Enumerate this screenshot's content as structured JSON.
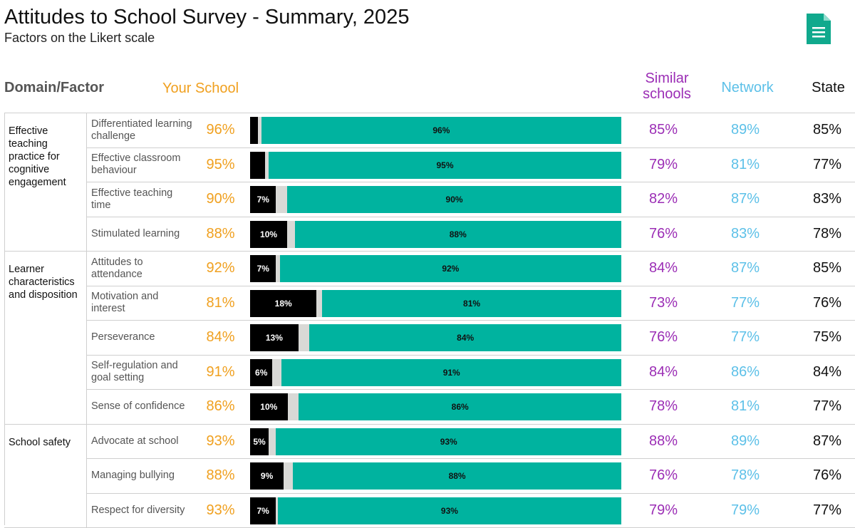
{
  "header": {
    "title": "Attitudes to School Survey - Summary, 2025",
    "subtitle": "Factors on the Likert scale"
  },
  "columns": {
    "domain": "Domain/Factor",
    "school": "Your School",
    "similar_line1": "Similar",
    "similar_line2": "schools",
    "network": "Network",
    "state": "State"
  },
  "colors": {
    "your_school": "#f0a01f",
    "similar": "#9b2db5",
    "network": "#5cc0e8",
    "negative": "#000000",
    "neutral": "#d9d9d6",
    "positive": "#00b39f"
  },
  "icons": {
    "export": "document-icon"
  },
  "domains": [
    {
      "name": "Effective teaching practice for cognitive engagement",
      "rows": 4
    },
    {
      "name": "Learner characteristics and disposition",
      "rows": 5
    },
    {
      "name": "School safety",
      "rows": 3
    }
  ],
  "chart_data": {
    "type": "bar",
    "stacked": true,
    "orientation": "horizontal",
    "categories": [
      "Differentiated learning challenge",
      "Effective classroom behaviour",
      "Effective teaching time",
      "Stimulated learning",
      "Attitudes to attendance",
      "Motivation and interest",
      "Perseverance",
      "Self-regulation and goal setting",
      "Sense of confidence",
      "Advocate at school",
      "Managing bullying",
      "Respect for diversity"
    ],
    "series": [
      {
        "values": [
          2,
          4,
          7,
          10,
          7,
          18,
          13,
          6,
          10,
          5,
          9,
          7
        ]
      },
      {
        "values": [
          1,
          1,
          3,
          2,
          1,
          1.5,
          3,
          2.5,
          3,
          2,
          2.5,
          0.5
        ]
      },
      {
        "values": [
          96,
          95,
          90,
          88,
          92,
          81,
          84,
          91,
          86,
          93,
          88,
          93
        ]
      }
    ],
    "segment_labels": [
      [
        "",
        "",
        "96%"
      ],
      [
        "",
        "",
        "95%"
      ],
      [
        "7%",
        "",
        "90%"
      ],
      [
        "10%",
        "",
        "88%"
      ],
      [
        "7%",
        "",
        "92%"
      ],
      [
        "18%",
        "",
        "81%"
      ],
      [
        "13%",
        "",
        "84%"
      ],
      [
        "6%",
        "",
        "91%"
      ],
      [
        "10%",
        "",
        "86%"
      ],
      [
        "5%",
        "",
        "93%"
      ],
      [
        "9%",
        "",
        "88%"
      ],
      [
        "7%",
        "",
        "93%"
      ]
    ],
    "ylim": [
      0,
      100
    ]
  },
  "rows": [
    {
      "factor": "Differentiated learning challenge",
      "school": "96%",
      "similar": "85%",
      "network": "89%",
      "state": "85%"
    },
    {
      "factor": "Effective classroom behaviour",
      "school": "95%",
      "similar": "79%",
      "network": "81%",
      "state": "77%"
    },
    {
      "factor": "Effective teaching time",
      "school": "90%",
      "similar": "82%",
      "network": "87%",
      "state": "83%"
    },
    {
      "factor": "Stimulated learning",
      "school": "88%",
      "similar": "76%",
      "network": "83%",
      "state": "78%"
    },
    {
      "factor": "Attitudes to attendance",
      "school": "92%",
      "similar": "84%",
      "network": "87%",
      "state": "85%"
    },
    {
      "factor": "Motivation and interest",
      "school": "81%",
      "similar": "73%",
      "network": "77%",
      "state": "76%"
    },
    {
      "factor": "Perseverance",
      "school": "84%",
      "similar": "76%",
      "network": "77%",
      "state": "75%"
    },
    {
      "factor": "Self-regulation and goal setting",
      "school": "91%",
      "similar": "84%",
      "network": "86%",
      "state": "84%"
    },
    {
      "factor": "Sense of confidence",
      "school": "86%",
      "similar": "78%",
      "network": "81%",
      "state": "77%"
    },
    {
      "factor": "Advocate at school",
      "school": "93%",
      "similar": "88%",
      "network": "89%",
      "state": "87%"
    },
    {
      "factor": "Managing bullying",
      "school": "88%",
      "similar": "76%",
      "network": "78%",
      "state": "76%"
    },
    {
      "factor": "Respect for diversity",
      "school": "93%",
      "similar": "79%",
      "network": "79%",
      "state": "77%"
    }
  ]
}
